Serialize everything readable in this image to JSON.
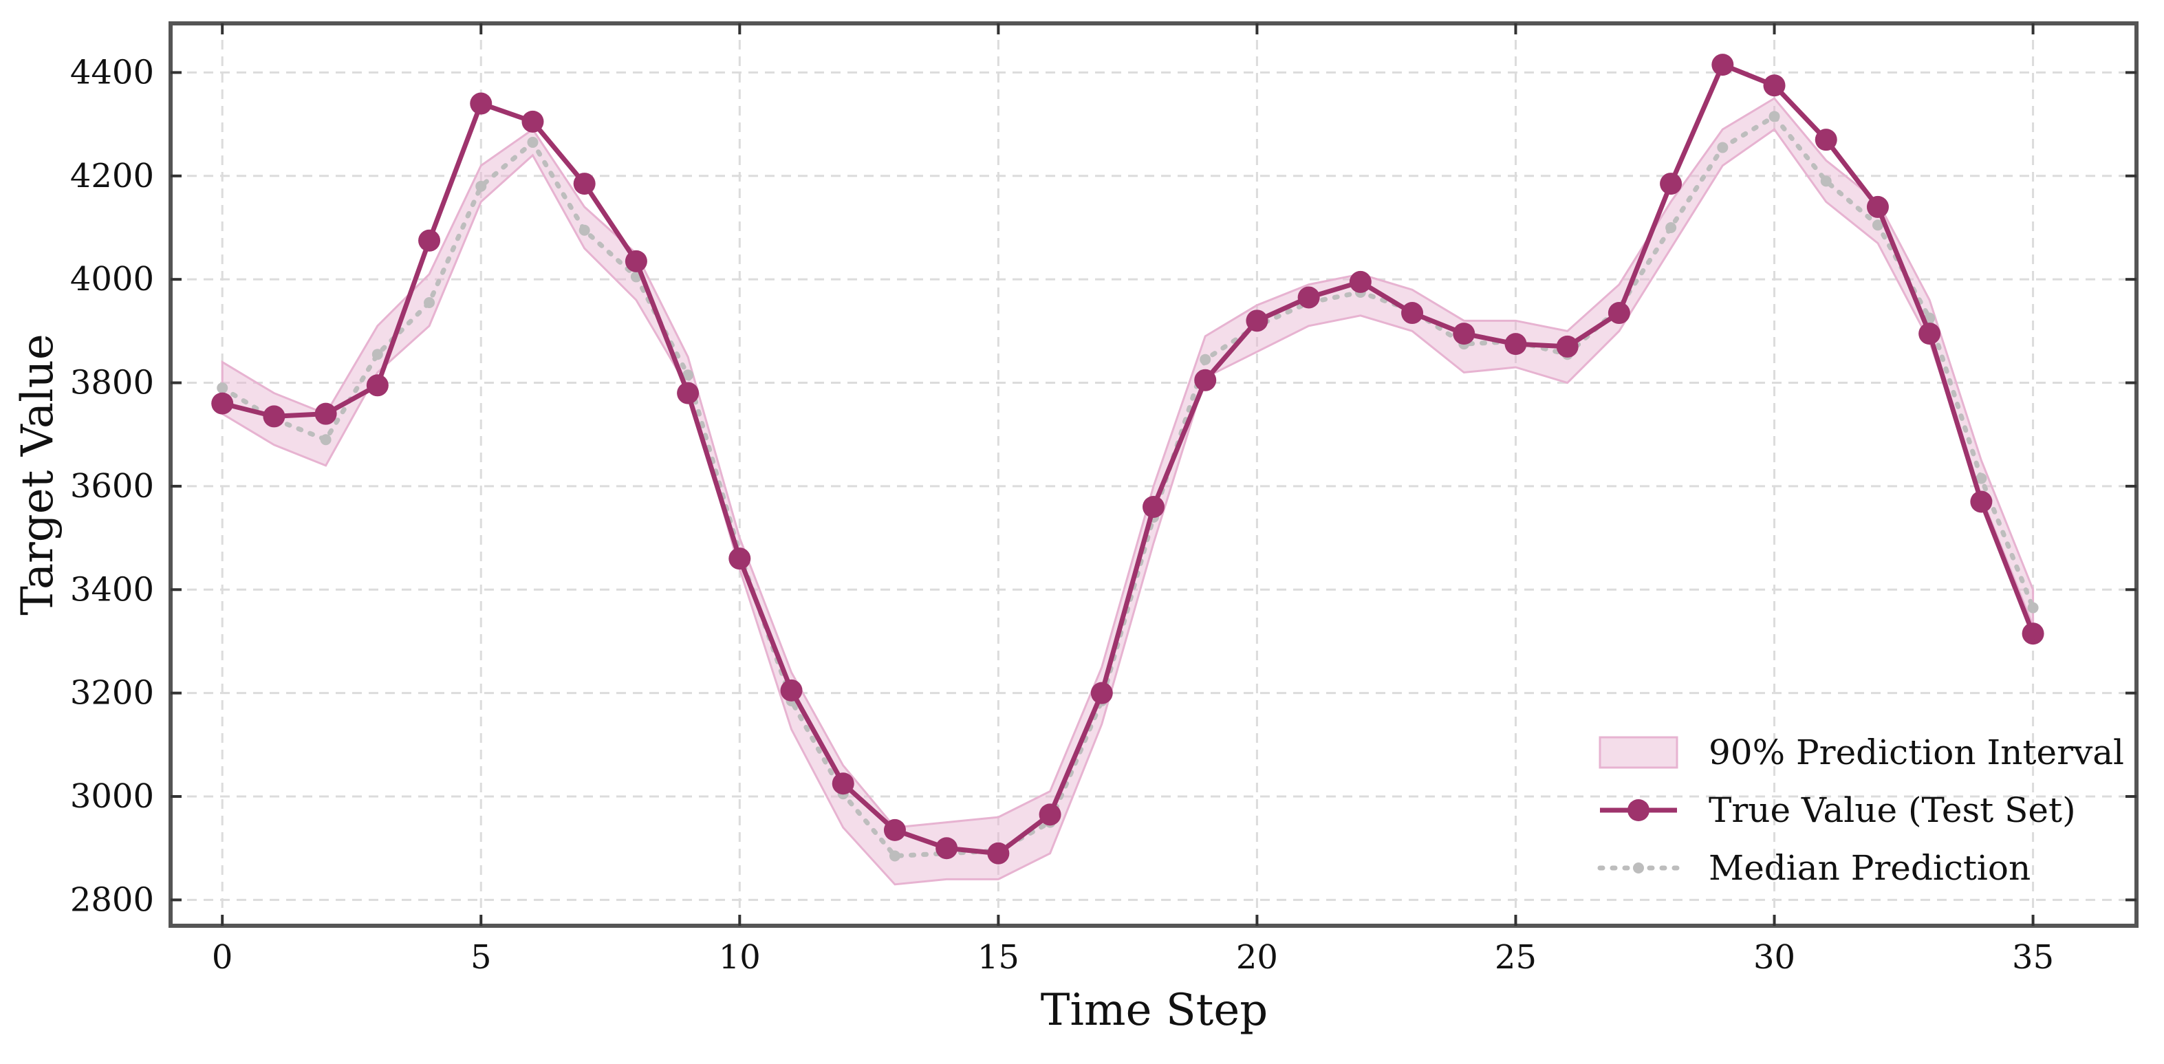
{
  "chart_data": {
    "type": "line",
    "title": "",
    "xlabel": "Time Step",
    "ylabel": "Target Value",
    "xlim": [
      -1,
      37
    ],
    "ylim": [
      2750,
      4495
    ],
    "x_ticks": [
      0,
      5,
      10,
      15,
      20,
      25,
      30,
      35
    ],
    "y_ticks": [
      2800,
      3000,
      3200,
      3400,
      3600,
      3800,
      4000,
      4200,
      4400
    ],
    "grid": true,
    "legend_position": "lower-right",
    "x": [
      0,
      1,
      2,
      3,
      4,
      5,
      6,
      7,
      8,
      9,
      10,
      11,
      12,
      13,
      14,
      15,
      16,
      17,
      18,
      19,
      20,
      21,
      22,
      23,
      24,
      25,
      26,
      27,
      28,
      29,
      30,
      31,
      32,
      33,
      34,
      35
    ],
    "series": [
      {
        "name": "90% Prediction Interval",
        "kind": "band",
        "color": "#e7b3d1",
        "lower": [
          3740,
          3680,
          3640,
          3820,
          3910,
          4150,
          4240,
          4060,
          3960,
          3790,
          3440,
          3130,
          2940,
          2830,
          2840,
          2840,
          2890,
          3140,
          3490,
          3810,
          3860,
          3910,
          3930,
          3900,
          3820,
          3830,
          3800,
          3900,
          4060,
          4220,
          4290,
          4150,
          4070,
          3880,
          3580,
          3330
        ],
        "upper": [
          3840,
          3780,
          3740,
          3910,
          4010,
          4220,
          4290,
          4140,
          4050,
          3850,
          3500,
          3240,
          3060,
          2940,
          2950,
          2960,
          3010,
          3250,
          3600,
          3890,
          3950,
          3990,
          4010,
          3980,
          3920,
          3920,
          3900,
          3990,
          4150,
          4290,
          4350,
          4230,
          4150,
          3960,
          3650,
          3400
        ]
      },
      {
        "name": "True Value (Test Set)",
        "kind": "line-marker",
        "color": "#9e336c",
        "values": [
          3760,
          3735,
          3740,
          3795,
          4075,
          4340,
          4305,
          4185,
          4035,
          3780,
          3460,
          3205,
          3025,
          2935,
          2900,
          2890,
          2965,
          3200,
          3560,
          3805,
          3920,
          3965,
          3995,
          3935,
          3895,
          3875,
          3870,
          3935,
          4185,
          4415,
          4375,
          4270,
          4140,
          3895,
          3570,
          3315
        ]
      },
      {
        "name": "Median Prediction",
        "kind": "dotted-line",
        "color": "#bdbdbd",
        "values": [
          3790,
          3730,
          3690,
          3855,
          3955,
          4180,
          4265,
          4095,
          4005,
          3815,
          3470,
          3185,
          3005,
          2885,
          2890,
          2895,
          2950,
          3185,
          3540,
          3845,
          3910,
          3955,
          3975,
          3940,
          3875,
          3880,
          3855,
          3945,
          4100,
          4255,
          4315,
          4190,
          4105,
          3925,
          3615,
          3365
        ]
      }
    ]
  }
}
